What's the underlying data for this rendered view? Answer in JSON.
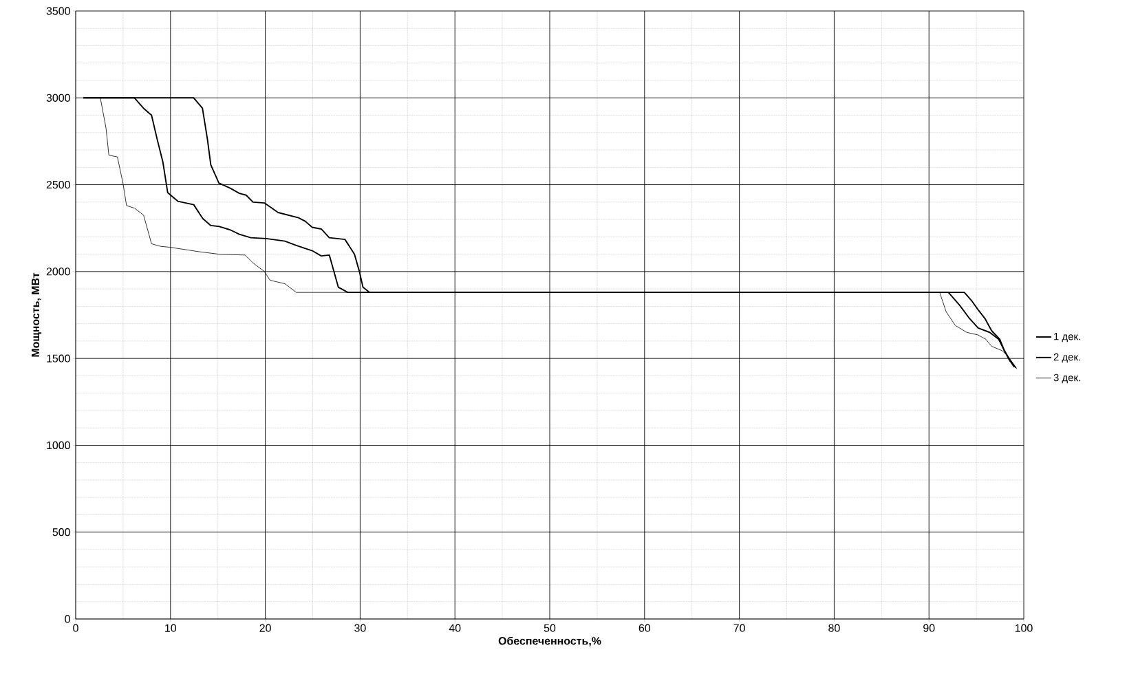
{
  "chart_data": {
    "type": "line",
    "xlabel": "Обеспеченность,%",
    "ylabel": "Мощность,  МВт",
    "xlim": [
      0,
      100
    ],
    "ylim": [
      0,
      3500
    ],
    "xticks": [
      0,
      10,
      20,
      30,
      40,
      50,
      60,
      70,
      80,
      90,
      100
    ],
    "yticks": [
      0,
      500,
      1000,
      1500,
      2000,
      2500,
      3000,
      3500
    ],
    "grid": true,
    "legend": "right",
    "marker": "none",
    "line_style": "solid",
    "series": [
      {
        "name": "1 дек.",
        "color": "#000000",
        "x": [
          0.8,
          12.45,
          13.37,
          13.9,
          14.25,
          15.1,
          16.3,
          17.26,
          17.98,
          18.7,
          19.9,
          21.35,
          23.5,
          24.2,
          24.95,
          25.9,
          26.75,
          28.4,
          29.4,
          29.95,
          30.3,
          31.0,
          93.73,
          94.46,
          95.18,
          95.9,
          96.6,
          97.47,
          97.95,
          98.43,
          99.0
        ],
        "values": [
          3000,
          3000,
          2940,
          2760,
          2615,
          2510,
          2480,
          2450,
          2440,
          2400,
          2395,
          2340,
          2310,
          2290,
          2255,
          2245,
          2195,
          2185,
          2100,
          1995,
          1910,
          1880,
          1880,
          1835,
          1780,
          1730,
          1660,
          1610,
          1545,
          1495,
          1450
        ]
      },
      {
        "name": "2 дек.",
        "color": "#000000",
        "x": [
          0.8,
          6.2,
          7.16,
          8.0,
          8.6,
          9.2,
          9.7,
          10.77,
          12.45,
          13.4,
          14.25,
          15.1,
          16.3,
          17.26,
          18.46,
          20.1,
          22.07,
          23.27,
          24.95,
          25.9,
          26.75,
          27.7,
          28.7,
          92.05,
          93.25,
          94.2,
          95.18,
          96.4,
          97.35,
          97.95,
          98.55,
          99.16
        ],
        "values": [
          3000,
          3000,
          2940,
          2900,
          2760,
          2630,
          2455,
          2405,
          2385,
          2305,
          2265,
          2260,
          2240,
          2215,
          2195,
          2190,
          2175,
          2150,
          2120,
          2090,
          2095,
          1910,
          1880,
          1880,
          1805,
          1735,
          1675,
          1650,
          1610,
          1545,
          1490,
          1445
        ]
      },
      {
        "name": "3 дек.",
        "color": "#000000",
        "x": [
          2.6,
          3.2,
          3.5,
          4.4,
          5.0,
          5.36,
          6.2,
          7.16,
          8.0,
          8.97,
          9.93,
          12.93,
          15.1,
          17.86,
          18.7,
          19.9,
          20.5,
          22.07,
          23.27,
          91.13,
          91.8,
          92.77,
          93.98,
          95.18,
          96.0,
          96.6,
          97.7,
          98.3,
          99.28
        ],
        "values": [
          3000,
          2825,
          2670,
          2660,
          2505,
          2380,
          2365,
          2325,
          2160,
          2145,
          2140,
          2115,
          2100,
          2095,
          2050,
          2000,
          1950,
          1930,
          1880,
          1880,
          1770,
          1690,
          1650,
          1635,
          1610,
          1570,
          1545,
          1515,
          1440
        ]
      }
    ]
  }
}
